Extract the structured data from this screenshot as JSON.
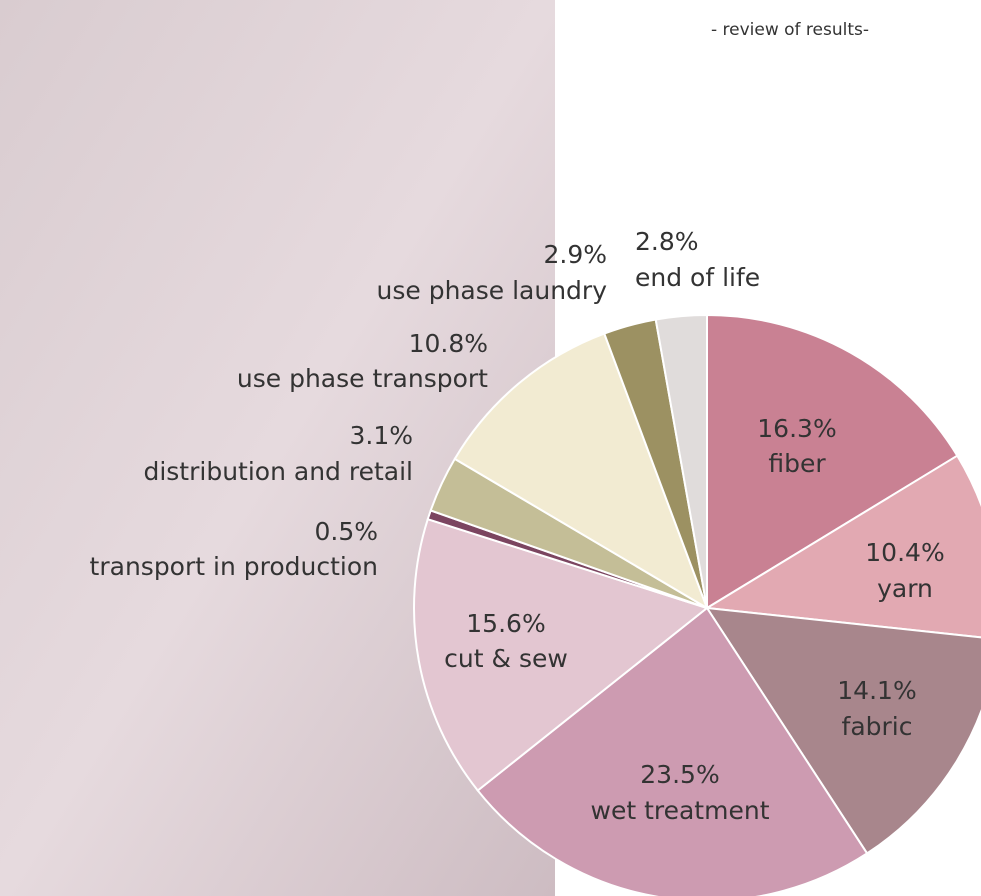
{
  "chart_data": {
    "type": "pie",
    "subtitle": "- review of results-",
    "categories": [
      "fiber",
      "yarn",
      "fabric",
      "wet treatment",
      "cut & sew",
      "transport in production",
      "distribution and retail",
      "use phase transport",
      "use phase laundry",
      "end of life"
    ],
    "values": [
      16.3,
      10.4,
      14.1,
      23.5,
      15.6,
      0.5,
      3.1,
      10.8,
      2.9,
      2.8
    ],
    "value_labels": [
      "16.3%",
      "10.4%",
      "14.1%",
      "23.5%",
      "15.6%",
      "0.5%",
      "3.1%",
      "10.8%",
      "2.9%",
      "2.8%"
    ],
    "colors": [
      "#c98193",
      "#e2a9b2",
      "#a8868c",
      "#cd9bb1",
      "#e3c6d1",
      "#7b4560",
      "#c4be97",
      "#f2ebd2",
      "#9c9162",
      "#e0dcdb"
    ]
  }
}
